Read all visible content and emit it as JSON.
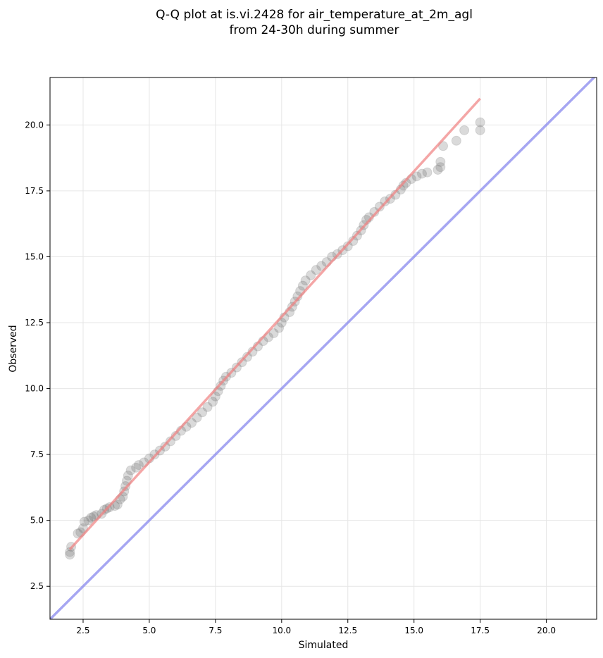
{
  "chart_data": {
    "type": "scatter",
    "title": [
      "Q-Q plot at is.vi.2428 for air_temperature_at_2m_agl",
      "from 24-30h during summer"
    ],
    "xlabel": "Simulated",
    "ylabel": "Observed",
    "xlim": [
      1.25,
      21.9
    ],
    "ylim": [
      1.25,
      21.8
    ],
    "xticks": [
      2.5,
      5.0,
      7.5,
      10.0,
      12.5,
      15.0,
      17.5,
      20.0
    ],
    "xtick_labels": [
      "2.5",
      "5.0",
      "7.5",
      "10.0",
      "12.5",
      "15.0",
      "17.5",
      "20.0"
    ],
    "yticks": [
      2.5,
      5.0,
      7.5,
      10.0,
      12.5,
      15.0,
      17.5,
      20.0
    ],
    "ytick_labels": [
      "2.5",
      "5.0",
      "7.5",
      "10.0",
      "12.5",
      "15.0",
      "17.5",
      "20.0"
    ],
    "grid": true,
    "colors": {
      "points": "#555555",
      "fit_line": "#f08080",
      "reference_line": "#8888ee"
    },
    "fit_line": {
      "x": [
        2.0,
        17.5
      ],
      "y": [
        3.9,
        21.0
      ]
    },
    "reference_line": {
      "x": [
        1.25,
        21.9
      ],
      "y": [
        1.25,
        21.9
      ]
    },
    "points": [
      [
        2.0,
        3.7
      ],
      [
        2.0,
        3.8
      ],
      [
        2.05,
        4.0
      ],
      [
        2.3,
        4.5
      ],
      [
        2.4,
        4.55
      ],
      [
        2.5,
        4.7
      ],
      [
        2.55,
        4.95
      ],
      [
        2.7,
        5.0
      ],
      [
        2.8,
        5.1
      ],
      [
        2.9,
        5.15
      ],
      [
        3.0,
        5.2
      ],
      [
        3.2,
        5.25
      ],
      [
        3.3,
        5.4
      ],
      [
        3.4,
        5.45
      ],
      [
        3.5,
        5.5
      ],
      [
        3.7,
        5.55
      ],
      [
        3.8,
        5.6
      ],
      [
        3.9,
        5.8
      ],
      [
        4.0,
        5.9
      ],
      [
        4.05,
        6.1
      ],
      [
        4.1,
        6.3
      ],
      [
        4.15,
        6.5
      ],
      [
        4.2,
        6.7
      ],
      [
        4.3,
        6.9
      ],
      [
        4.5,
        7.0
      ],
      [
        4.6,
        7.1
      ],
      [
        4.8,
        7.2
      ],
      [
        5.0,
        7.35
      ],
      [
        5.2,
        7.5
      ],
      [
        5.4,
        7.65
      ],
      [
        5.6,
        7.8
      ],
      [
        5.8,
        8.0
      ],
      [
        6.0,
        8.2
      ],
      [
        6.2,
        8.4
      ],
      [
        6.4,
        8.55
      ],
      [
        6.6,
        8.7
      ],
      [
        6.8,
        8.9
      ],
      [
        7.0,
        9.1
      ],
      [
        7.2,
        9.3
      ],
      [
        7.4,
        9.5
      ],
      [
        7.5,
        9.7
      ],
      [
        7.6,
        9.9
      ],
      [
        7.7,
        10.1
      ],
      [
        7.8,
        10.3
      ],
      [
        7.9,
        10.45
      ],
      [
        8.1,
        10.6
      ],
      [
        8.3,
        10.8
      ],
      [
        8.5,
        11.0
      ],
      [
        8.7,
        11.2
      ],
      [
        8.9,
        11.4
      ],
      [
        9.1,
        11.6
      ],
      [
        9.3,
        11.8
      ],
      [
        9.5,
        11.95
      ],
      [
        9.7,
        12.1
      ],
      [
        9.9,
        12.3
      ],
      [
        10.0,
        12.5
      ],
      [
        10.1,
        12.7
      ],
      [
        10.3,
        12.9
      ],
      [
        10.4,
        13.1
      ],
      [
        10.5,
        13.3
      ],
      [
        10.6,
        13.5
      ],
      [
        10.7,
        13.7
      ],
      [
        10.8,
        13.9
      ],
      [
        10.9,
        14.1
      ],
      [
        11.1,
        14.3
      ],
      [
        11.3,
        14.5
      ],
      [
        11.5,
        14.65
      ],
      [
        11.7,
        14.8
      ],
      [
        11.9,
        15.0
      ],
      [
        12.1,
        15.1
      ],
      [
        12.3,
        15.25
      ],
      [
        12.5,
        15.4
      ],
      [
        12.7,
        15.6
      ],
      [
        12.85,
        15.8
      ],
      [
        13.0,
        16.0
      ],
      [
        13.1,
        16.2
      ],
      [
        13.2,
        16.4
      ],
      [
        13.3,
        16.5
      ],
      [
        13.5,
        16.7
      ],
      [
        13.7,
        16.9
      ],
      [
        13.9,
        17.1
      ],
      [
        14.1,
        17.2
      ],
      [
        14.3,
        17.35
      ],
      [
        14.5,
        17.55
      ],
      [
        14.6,
        17.7
      ],
      [
        14.7,
        17.8
      ],
      [
        14.9,
        17.95
      ],
      [
        15.1,
        18.05
      ],
      [
        15.3,
        18.15
      ],
      [
        15.5,
        18.2
      ],
      [
        15.9,
        18.3
      ],
      [
        16.0,
        18.4
      ],
      [
        16.0,
        18.6
      ],
      [
        16.1,
        19.2
      ],
      [
        16.6,
        19.4
      ],
      [
        16.9,
        19.8
      ],
      [
        17.5,
        19.8
      ],
      [
        17.5,
        20.1
      ]
    ]
  }
}
